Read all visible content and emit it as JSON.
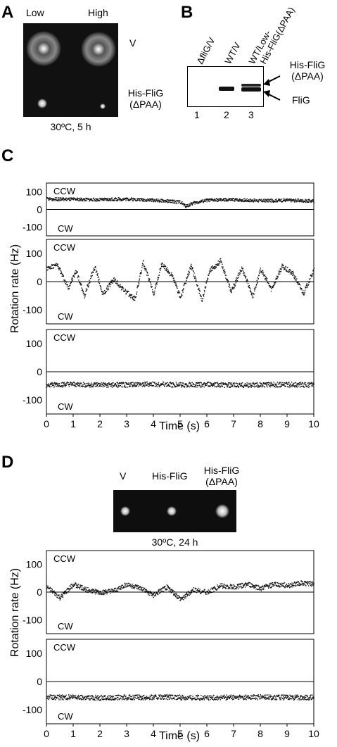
{
  "panels": {
    "A": {
      "letter": "A",
      "col_labels": [
        "Low",
        "High"
      ],
      "row_labels": [
        "V",
        "His-FliG",
        "(ΔPAA)"
      ],
      "condition": "30ºC, 5 h"
    },
    "B": {
      "letter": "B",
      "lane_labels": [
        "ΔfliG/V",
        "WT/V",
        "WT/Low-",
        "His-FliG(ΔPAA)"
      ],
      "lane_numbers": [
        "1",
        "2",
        "3"
      ],
      "band_labels": [
        "His-FliG",
        "(ΔPAA)",
        "FliG"
      ]
    },
    "C": {
      "letter": "C",
      "ylabel": "Rotation rate (Hz)",
      "xlabel": "Time (s)",
      "direction_labels": {
        "ccw": "CCW",
        "cw": "CW"
      }
    },
    "D": {
      "letter": "D",
      "col_labels": [
        "V",
        "His-FliG",
        "His-FliG",
        "(ΔPAA)"
      ],
      "condition": "30ºC, 24 h",
      "ylabel": "Rotation rate (Hz)",
      "xlabel": "Time (s)",
      "direction_labels": {
        "ccw": "CCW",
        "cw": "CW"
      }
    }
  },
  "chart_data": [
    {
      "id": "C1",
      "type": "scatter",
      "ylim": [
        -150,
        150
      ],
      "xlim": [
        0,
        10
      ],
      "yticks": [
        "100",
        "0",
        "-100"
      ],
      "ytick_values": [
        100,
        0,
        -100
      ],
      "xticks": [],
      "zero_line": true,
      "series": [
        {
          "x": [
            0,
            1,
            2,
            3,
            4,
            5,
            5.2,
            5.5,
            6,
            7,
            8,
            9,
            10
          ],
          "y": [
            62,
            60,
            58,
            62,
            55,
            45,
            20,
            40,
            55,
            58,
            52,
            55,
            50
          ]
        }
      ]
    },
    {
      "id": "C2",
      "type": "scatter",
      "ylim": [
        -150,
        150
      ],
      "xlim": [
        0,
        10
      ],
      "yticks": [
        "100",
        "0",
        "-100"
      ],
      "ytick_values": [
        100,
        0,
        -100
      ],
      "xticks": [],
      "zero_line": true,
      "series": [
        {
          "x": [
            0,
            0.4,
            0.8,
            1.1,
            1.4,
            1.8,
            2.1,
            2.5,
            2.9,
            3.3,
            3.6,
            4.0,
            4.3,
            4.7,
            5.0,
            5.4,
            5.8,
            6.1,
            6.5,
            6.9,
            7.3,
            7.7,
            8.0,
            8.4,
            8.8,
            9.2,
            9.6,
            10
          ],
          "y": [
            50,
            60,
            -20,
            40,
            -50,
            55,
            -45,
            10,
            -30,
            -60,
            70,
            -40,
            65,
            20,
            -55,
            60,
            -65,
            40,
            75,
            -35,
            50,
            -50,
            45,
            -25,
            55,
            30,
            -40,
            45
          ]
        }
      ]
    },
    {
      "id": "C3",
      "type": "scatter",
      "ylim": [
        -150,
        150
      ],
      "xlim": [
        0,
        10
      ],
      "yticks": [
        "100",
        "0",
        "-100"
      ],
      "ytick_values": [
        100,
        0,
        -100
      ],
      "xticks": [
        "0",
        "1",
        "2",
        "3",
        "4",
        "5",
        "6",
        "7",
        "8",
        "9",
        "10"
      ],
      "zero_line": true,
      "series": [
        {
          "x": [
            0,
            1,
            2,
            3,
            4,
            5,
            6,
            7,
            8,
            9,
            10
          ],
          "y": [
            -45,
            -44,
            -46,
            -45,
            -43,
            -45,
            -44,
            -46,
            -45,
            -44,
            -45
          ]
        }
      ]
    },
    {
      "id": "D1",
      "type": "scatter",
      "ylim": [
        -150,
        150
      ],
      "xlim": [
        0,
        10
      ],
      "yticks": [
        "100",
        "0",
        "-100"
      ],
      "ytick_values": [
        100,
        0,
        -100
      ],
      "xticks": [],
      "zero_line": true,
      "series": [
        {
          "x": [
            0,
            0.5,
            1,
            1.5,
            2,
            2.5,
            3,
            3.5,
            4,
            4.5,
            5,
            5.5,
            6,
            6.5,
            7,
            7.5,
            8,
            8.5,
            9,
            9.5,
            10
          ],
          "y": [
            20,
            -20,
            30,
            10,
            0,
            5,
            30,
            15,
            -10,
            20,
            -25,
            10,
            0,
            25,
            20,
            30,
            15,
            30,
            25,
            35,
            30
          ]
        }
      ]
    },
    {
      "id": "D2",
      "type": "scatter",
      "ylim": [
        -150,
        150
      ],
      "xlim": [
        0,
        10
      ],
      "yticks": [
        "100",
        "0",
        "-100"
      ],
      "ytick_values": [
        100,
        0,
        -100
      ],
      "xticks": [
        "0",
        "1",
        "2",
        "3",
        "4",
        "5",
        "6",
        "7",
        "8",
        "9",
        "10"
      ],
      "zero_line": true,
      "series": [
        {
          "x": [
            0,
            1,
            2,
            3,
            4,
            5,
            6,
            7,
            8,
            9,
            10
          ],
          "y": [
            -55,
            -54,
            -56,
            -55,
            -54,
            -55,
            -56,
            -55,
            -54,
            -55,
            -55
          ]
        }
      ]
    }
  ]
}
